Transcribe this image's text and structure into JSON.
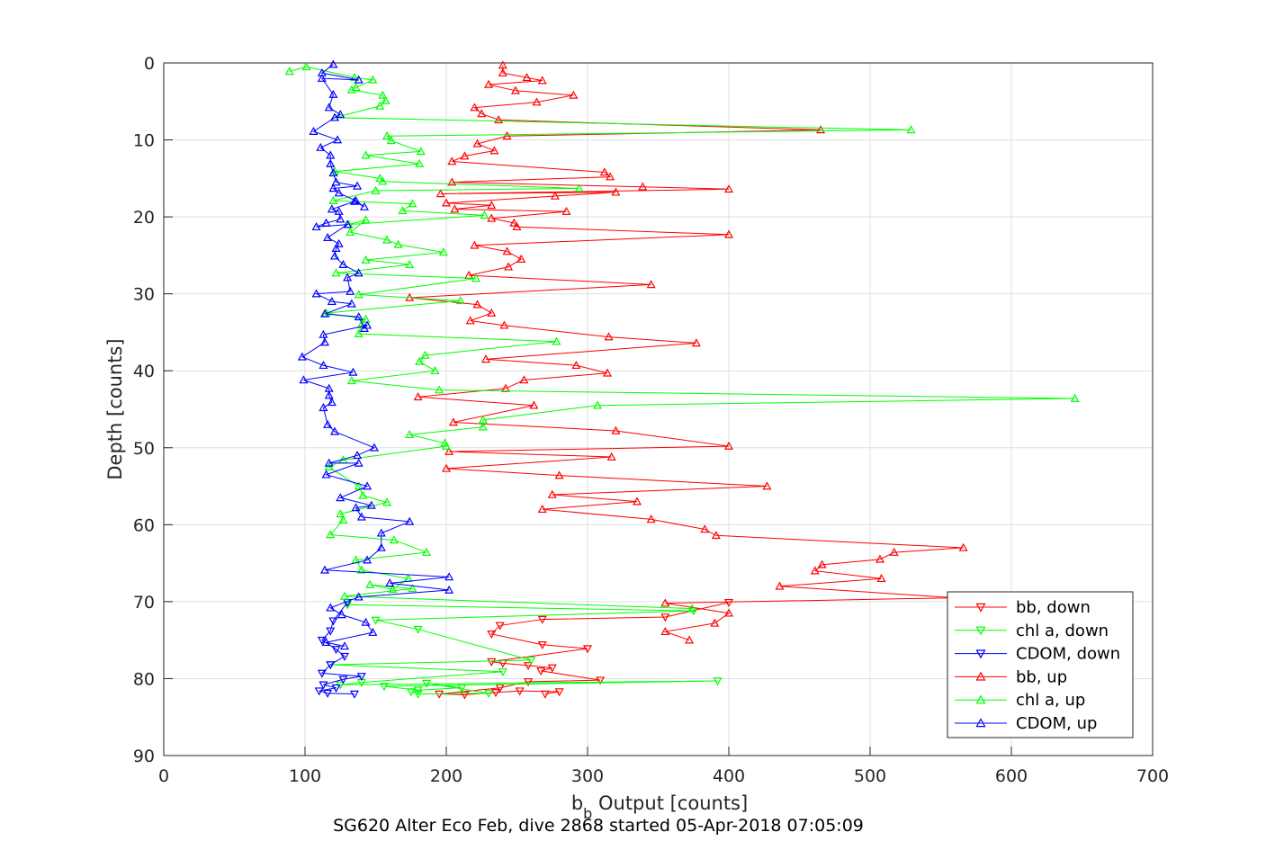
{
  "chart_data": {
    "type": "line",
    "title": "",
    "xlabel": "b_b Output [counts]",
    "xlabel_main": "b",
    "xlabel_sub": "b",
    "xlabel_rest": " Output [counts]",
    "ylabel": "Depth [counts]",
    "footer": "SG620 Alter Eco Feb, dive 2868 started 05-Apr-2018 07:05:09",
    "xlim": [
      0,
      700
    ],
    "ylim": [
      0,
      90
    ],
    "y_reversed": true,
    "grid": true,
    "legend_position": "bottom-right",
    "xticks": [
      "0",
      "100",
      "200",
      "300",
      "400",
      "500",
      "600",
      "700"
    ],
    "yticks": [
      "0",
      "10",
      "20",
      "30",
      "40",
      "50",
      "60",
      "70",
      "80",
      "90"
    ],
    "series": [
      {
        "name": "bb, down",
        "color": "#ff0000",
        "marker": "triangle-down",
        "x": [
          400,
          355,
          268,
          238,
          232,
          268,
          300,
          232,
          240,
          258,
          275,
          267,
          309,
          258,
          238,
          195,
          213,
          235,
          252,
          280,
          270
        ],
        "y": [
          70.1,
          72.0,
          72.3,
          73.1,
          74.2,
          75.6,
          76.1,
          77.8,
          78.0,
          78.3,
          78.6,
          79.0,
          80.2,
          80.4,
          81.2,
          82.0,
          82.1,
          81.8,
          81.6,
          81.7,
          82.0
        ]
      },
      {
        "name": "chl a, down",
        "color": "#00ff00",
        "marker": "triangle-down",
        "x": [
          130,
          375,
          150,
          180,
          260,
          118,
          240,
          140,
          125,
          392,
          156,
          180,
          211,
          186,
          230,
          180,
          175
        ],
        "y": [
          70.4,
          71.2,
          72.4,
          73.6,
          77.6,
          78.2,
          79.1,
          80.5,
          80.8,
          80.3,
          81.0,
          81.5,
          81.2,
          80.6,
          81.9,
          82.0,
          81.7
        ]
      },
      {
        "name": "CDOM, down",
        "color": "#0000ff",
        "marker": "triangle-down",
        "x": [
          130,
          120,
          118,
          112,
          122,
          128,
          118,
          112,
          140,
          127,
          113,
          122,
          110,
          116,
          135
        ],
        "y": [
          70.1,
          72.5,
          73.8,
          75.0,
          76.2,
          77.1,
          78.2,
          79.3,
          79.7,
          80.1,
          80.8,
          81.2,
          81.6,
          81.9,
          82.0
        ]
      },
      {
        "name": "bb, up",
        "color": "#ff0000",
        "marker": "triangle-up",
        "x": [
          240,
          240,
          257,
          268,
          230,
          249,
          290,
          264,
          220,
          225,
          237,
          465,
          243,
          222,
          234,
          213,
          204,
          312,
          316,
          204,
          339,
          400,
          196,
          320,
          277,
          200,
          232,
          206,
          285,
          232,
          248,
          250,
          400,
          220,
          243,
          253,
          244,
          216,
          345,
          174,
          222,
          232,
          217,
          241,
          315,
          377,
          228,
          292,
          314,
          255,
          242,
          180,
          262,
          205,
          320,
          400,
          202,
          317,
          200,
          280,
          427,
          275,
          335,
          268,
          345,
          383,
          391,
          566,
          517,
          507,
          466,
          461,
          508,
          436,
          560,
          355,
          400,
          390,
          355,
          372
        ],
        "y": [
          0.3,
          1.3,
          1.9,
          2.3,
          2.8,
          3.6,
          4.2,
          5.1,
          5.8,
          6.6,
          7.4,
          8.7,
          9.5,
          10.5,
          11.4,
          12.1,
          12.8,
          14.2,
          14.8,
          15.5,
          16.1,
          16.4,
          17.0,
          16.8,
          17.3,
          18.2,
          18.5,
          19.0,
          19.3,
          20.2,
          20.8,
          21.3,
          22.3,
          23.7,
          24.5,
          25.5,
          26.5,
          27.6,
          28.8,
          30.5,
          31.4,
          32.5,
          33.5,
          34.1,
          35.6,
          36.4,
          38.5,
          39.3,
          40.3,
          41.2,
          42.3,
          43.4,
          44.5,
          46.7,
          47.8,
          49.8,
          50.5,
          51.2,
          52.7,
          53.6,
          55.0,
          56.1,
          57.0,
          58.0,
          59.3,
          60.6,
          61.4,
          63.0,
          63.6,
          64.5,
          65.2,
          66.0,
          67.0,
          68.0,
          69.5,
          70.2,
          71.5,
          72.8,
          73.9,
          75.0
        ]
      },
      {
        "name": "chl a, up",
        "color": "#00ff00",
        "marker": "triangle-up",
        "x": [
          89,
          101,
          135,
          148,
          136,
          133,
          155,
          157,
          153,
          121,
          529,
          158,
          161,
          182,
          143,
          181,
          121,
          153,
          155,
          294,
          150,
          120,
          176,
          169,
          227,
          131,
          143,
          132,
          158,
          166,
          198,
          143,
          174,
          122,
          221,
          138,
          210,
          115,
          143,
          140,
          138,
          278,
          185,
          181,
          192,
          133,
          195,
          645,
          307,
          226,
          226,
          174,
          199,
          200,
          127,
          117,
          138,
          141,
          158,
          125,
          127,
          118,
          163,
          186,
          136,
          140,
          173,
          162,
          146,
          176,
          128,
          374
        ],
        "y": [
          1.1,
          0.5,
          1.9,
          2.2,
          3.2,
          3.5,
          4.2,
          4.9,
          5.6,
          7.1,
          8.7,
          9.5,
          10.1,
          11.5,
          12.0,
          13.1,
          14.1,
          15.0,
          15.4,
          16.3,
          16.6,
          17.9,
          18.3,
          19.2,
          19.8,
          21.0,
          20.4,
          22.0,
          23.0,
          23.6,
          24.6,
          25.6,
          26.2,
          27.3,
          28.0,
          30.1,
          30.9,
          32.5,
          33.3,
          34.0,
          35.2,
          36.2,
          38.0,
          38.8,
          40.0,
          41.3,
          42.5,
          43.6,
          44.5,
          46.4,
          47.3,
          48.3,
          49.4,
          49.8,
          51.6,
          52.5,
          55.0,
          56.2,
          57.1,
          58.6,
          59.4,
          61.3,
          62.0,
          63.6,
          64.6,
          65.9,
          67.0,
          68.4,
          67.8,
          68.3,
          69.3,
          70.9
        ]
      },
      {
        "name": "CDOM, up",
        "color": "#0000ff",
        "marker": "triangle-up",
        "x": [
          120,
          112,
          138,
          112,
          120,
          117,
          125,
          121,
          106,
          123,
          111,
          118,
          118,
          120,
          122,
          137,
          120,
          124,
          136,
          142,
          135,
          119,
          124,
          125,
          115,
          108,
          130,
          116,
          124,
          122,
          121,
          127,
          138,
          130,
          132,
          108,
          119,
          133,
          114,
          138,
          142,
          144,
          113,
          114,
          98,
          113,
          134,
          99,
          117,
          117,
          119,
          113,
          116,
          121,
          149,
          137,
          117,
          138,
          115,
          144,
          125,
          147,
          136,
          140,
          174,
          154,
          154,
          144,
          114,
          202,
          160,
          202,
          138,
          118,
          126,
          143,
          148,
          115,
          128
        ],
        "y": [
          0.2,
          1.3,
          2.2,
          2.0,
          4.1,
          5.8,
          6.7,
          7.1,
          8.9,
          10.0,
          11.0,
          12.0,
          13.1,
          14.3,
          15.5,
          16.0,
          16.3,
          16.9,
          17.9,
          18.7,
          18.0,
          19.0,
          19.3,
          20.3,
          20.8,
          21.3,
          21.0,
          22.7,
          23.5,
          24.1,
          25.1,
          26.2,
          27.3,
          27.9,
          29.7,
          30.0,
          31.0,
          31.3,
          32.6,
          33.0,
          34.5,
          34.1,
          35.3,
          36.3,
          38.2,
          39.3,
          40.2,
          41.2,
          42.3,
          43.2,
          44.1,
          44.8,
          47.0,
          47.9,
          50.0,
          51.0,
          52.0,
          52.0,
          53.5,
          55.0,
          56.5,
          57.5,
          57.8,
          59.0,
          59.6,
          61.1,
          63.0,
          64.6,
          65.9,
          66.8,
          67.6,
          68.5,
          69.4,
          70.8,
          71.7,
          72.7,
          74.0,
          75.3,
          75.8
        ]
      }
    ]
  }
}
